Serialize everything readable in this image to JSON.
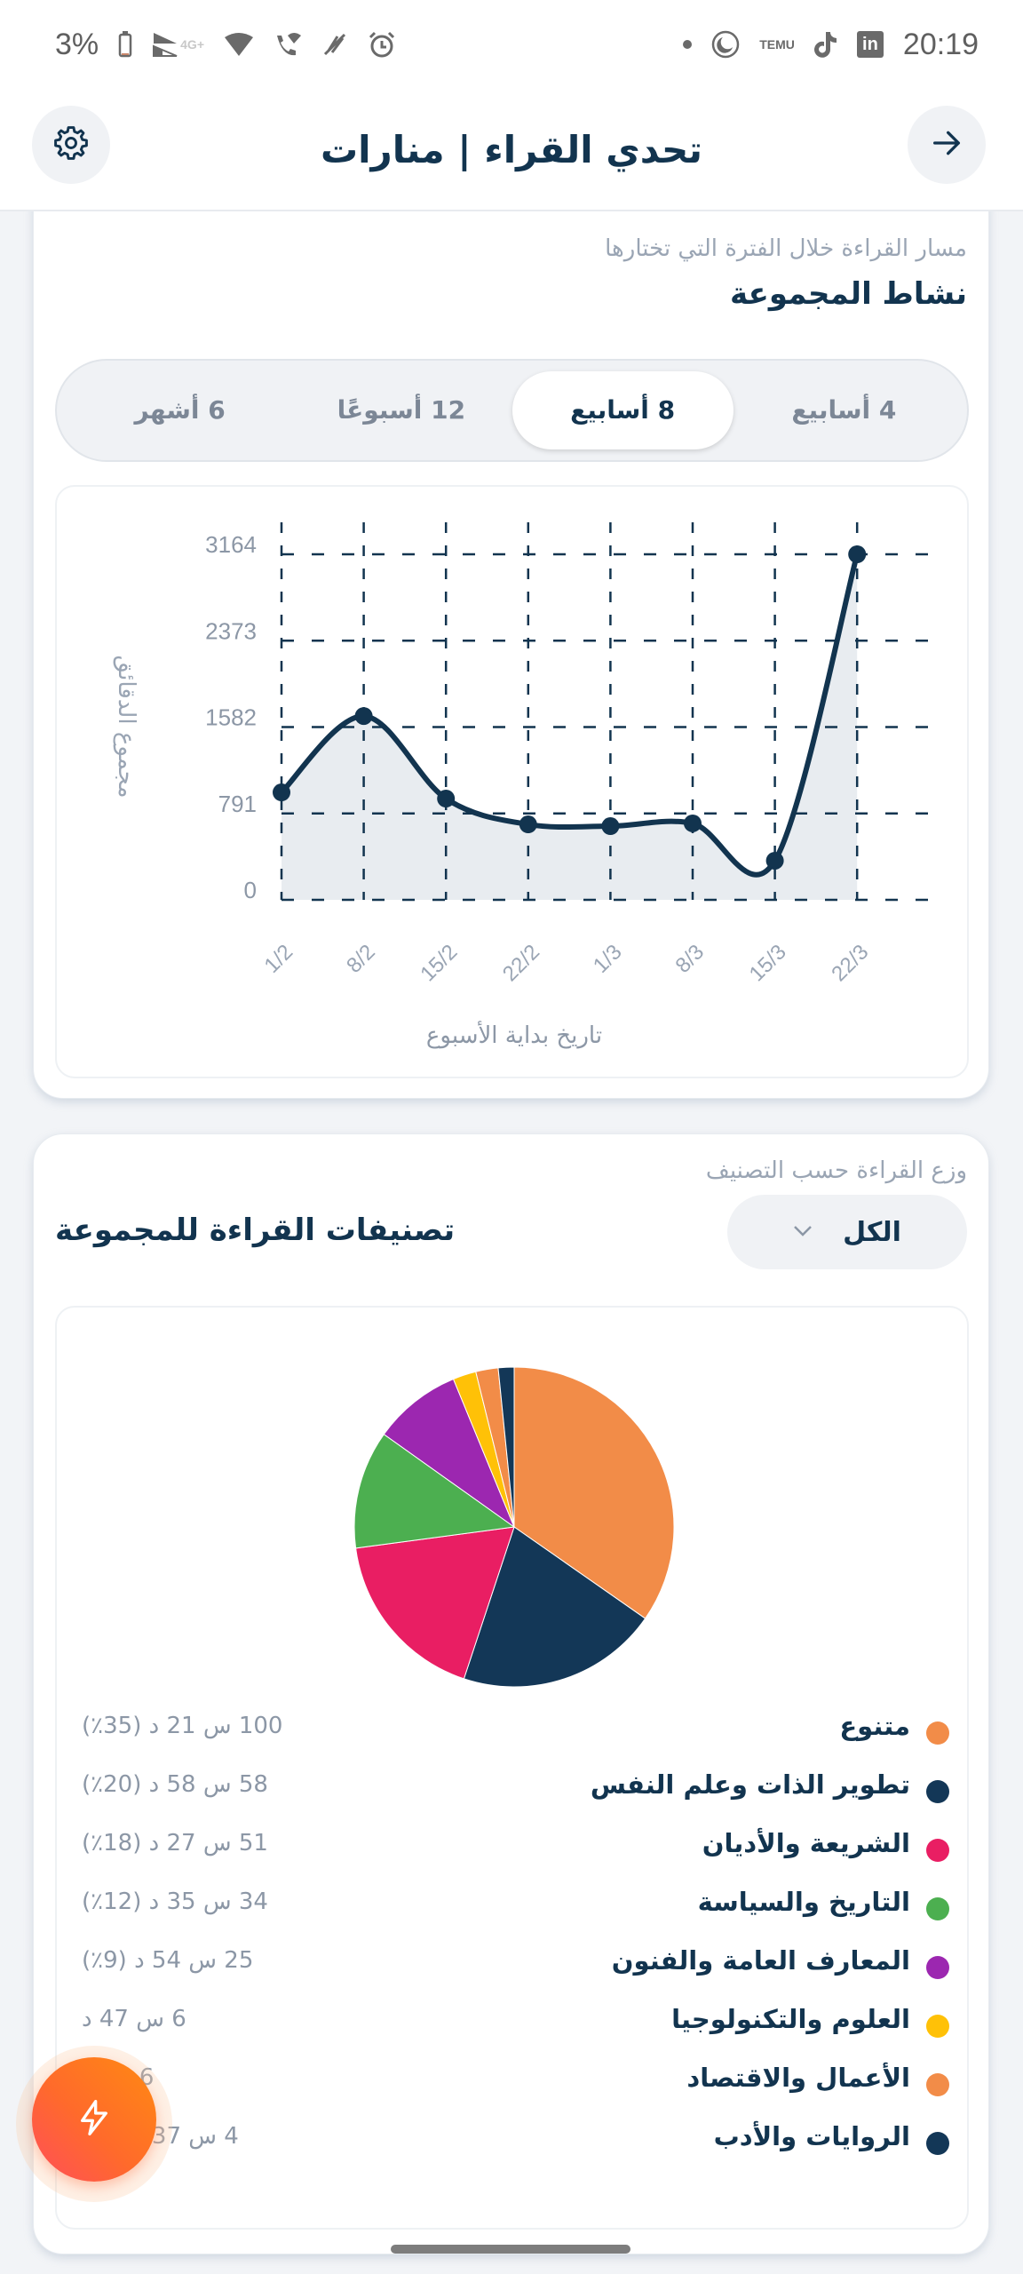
{
  "status_bar": {
    "battery": "3%",
    "network": "4G+",
    "time": "20:19",
    "left_icons": [
      "battery-icon",
      "signal-icon",
      "wifi-icon",
      "wifi-call-icon",
      "vibrate-off-icon",
      "alarm-icon"
    ],
    "right_icons": [
      "dot-icon",
      "moon-app-icon",
      "temu-icon",
      "tiktok-icon",
      "linkedin-icon"
    ],
    "temu_label": "TEMU",
    "linkedin_label": "in"
  },
  "header": {
    "title": "تحدي القراء | منارات",
    "settings_icon": "gear-icon",
    "back_icon": "arrow-right-icon"
  },
  "activity_card": {
    "subtitle": "مسار القراءة خلال الفترة التي تختارها",
    "title": "نشاط المجموعة",
    "range_tabs": [
      {
        "label": "4 أسابيع",
        "active": false
      },
      {
        "label": "8 أسابيع",
        "active": true
      },
      {
        "label": "12 أسبوعًا",
        "active": false
      },
      {
        "label": "6 أشهر",
        "active": false
      }
    ]
  },
  "categories_card": {
    "subtitle": "وزع القراءة حسب التصنيف",
    "title": "تصنيفات القراءة للمجموعة",
    "filter": {
      "selected": "الكل",
      "icon": "chevron-down-icon"
    },
    "legend": [
      {
        "name": "متنوع",
        "value": "100 س 21 د (35٪)",
        "color": "#f28c48"
      },
      {
        "name": "تطوير الذات وعلم النفس",
        "value": "58 س 58 د (20٪)",
        "color": "#133757"
      },
      {
        "name": "الشريعة والأديان",
        "value": "51 س 27 د (18٪)",
        "color": "#e91e63"
      },
      {
        "name": "التاريخ والسياسة",
        "value": "34 س 35 د (12٪)",
        "color": "#4caf50"
      },
      {
        "name": "المعارف العامة والفنون",
        "value": "25 س 54 د (9٪)",
        "color": "#9c27b0"
      },
      {
        "name": "العلوم والتكنولوجيا",
        "value": "6 س 47 د",
        "color": "#ffc107"
      },
      {
        "name": "الأعمال والاقتصاد",
        "value": "6 س 3",
        "color": "#f28c48"
      },
      {
        "name": "الروايات والأدب",
        "value": "4 س 37 د (٪2)",
        "color": "#133757"
      }
    ]
  },
  "fab": {
    "icon": "lightning-icon"
  },
  "colors": {
    "primary": "#12344f",
    "muted": "#9aa5b4",
    "background": "#f2f4f7",
    "fab_gradient_start": "#ff8a12",
    "fab_gradient_end": "#ff4e5a"
  },
  "chart_data": [
    {
      "type": "area",
      "title": "نشاط المجموعة",
      "subtitle": "مسار القراءة خلال الفترة التي تختارها",
      "xlabel": "تاريخ بداية الأسبوع",
      "ylabel": "مجموع الدقائق",
      "categories": [
        "1/2",
        "8/2",
        "15/2",
        "22/2",
        "1/3",
        "8/3",
        "15/3",
        "22/3"
      ],
      "values": [
        984,
        1683,
        927,
        691,
        675,
        700,
        358,
        3164
      ],
      "yticks": [
        0,
        791,
        1582,
        2373,
        3164
      ],
      "ylim": [
        0,
        3164
      ],
      "grid": true,
      "line_color": "#12344f",
      "fill_color": "#e6eaee"
    },
    {
      "type": "pie",
      "title": "تصنيفات القراءة للمجموعة",
      "subtitle": "وزع القراءة حسب التصنيف",
      "categories": [
        "متنوع",
        "تطوير الذات وعلم النفس",
        "الشريعة والأديان",
        "التاريخ والسياسة",
        "المعارف العامة والفنون",
        "العلوم والتكنولوجيا",
        "الأعمال والاقتصاد",
        "الروايات والأدب"
      ],
      "values_minutes": [
        6021,
        3538,
        3087,
        2075,
        1554,
        407,
        393,
        277
      ],
      "percentages": [
        35,
        20,
        18,
        12,
        9,
        2,
        2,
        2
      ],
      "colors": [
        "#f28c48",
        "#133757",
        "#e91e63",
        "#4caf50",
        "#9c27b0",
        "#ffc107",
        "#f28c48",
        "#133757"
      ],
      "legend_position": "bottom"
    }
  ]
}
